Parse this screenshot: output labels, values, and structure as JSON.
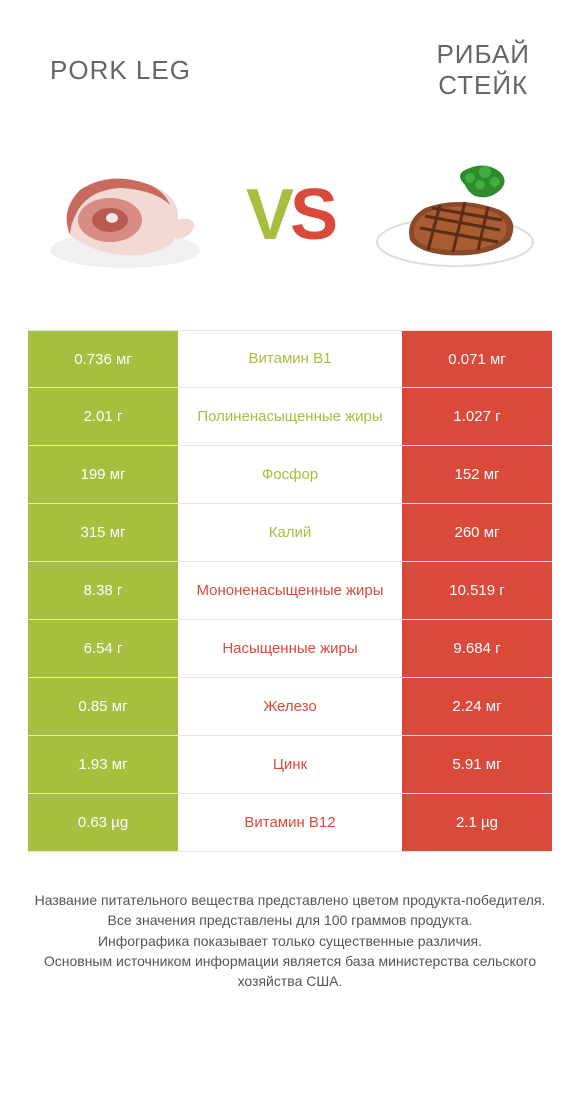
{
  "colors": {
    "left": "#a7bf3f",
    "right": "#d94a3a",
    "row_border": "#e5e5e5",
    "heading": "#666666",
    "footer": "#555555",
    "white": "#ffffff"
  },
  "header": {
    "left_title": "PORK LEG",
    "right_title": "РИБАЙ\nСТЕЙК"
  },
  "hero": {
    "vs_v": "V",
    "vs_s": "S"
  },
  "rows": [
    {
      "left": "0.736 мг",
      "label": "Витамин B1",
      "right": "0.071 мг",
      "winner": "left"
    },
    {
      "left": "2.01 г",
      "label": "Полиненасыщенные жиры",
      "right": "1.027 г",
      "winner": "left"
    },
    {
      "left": "199 мг",
      "label": "Фосфор",
      "right": "152 мг",
      "winner": "left"
    },
    {
      "left": "315 мг",
      "label": "Калий",
      "right": "260 мг",
      "winner": "left"
    },
    {
      "left": "8.38 г",
      "label": "Мононенасыщенные жиры",
      "right": "10.519 г",
      "winner": "right"
    },
    {
      "left": "6.54 г",
      "label": "Насыщенные жиры",
      "right": "9.684 г",
      "winner": "right"
    },
    {
      "left": "0.85 мг",
      "label": "Железо",
      "right": "2.24 мг",
      "winner": "right"
    },
    {
      "left": "1.93 мг",
      "label": "Цинк",
      "right": "5.91 мг",
      "winner": "right"
    },
    {
      "left": "0.63 µg",
      "label": "Витамин B12",
      "right": "2.1 µg",
      "winner": "right"
    }
  ],
  "footer": {
    "line1": "Название питательного вещества представлено цветом продукта-победителя.",
    "line2": "Все значения представлены для 100 граммов продукта.",
    "line3": "Инфографика показывает только существенные различия.",
    "line4": "Основным источником информации является база министерства сельского хозяйства США."
  }
}
